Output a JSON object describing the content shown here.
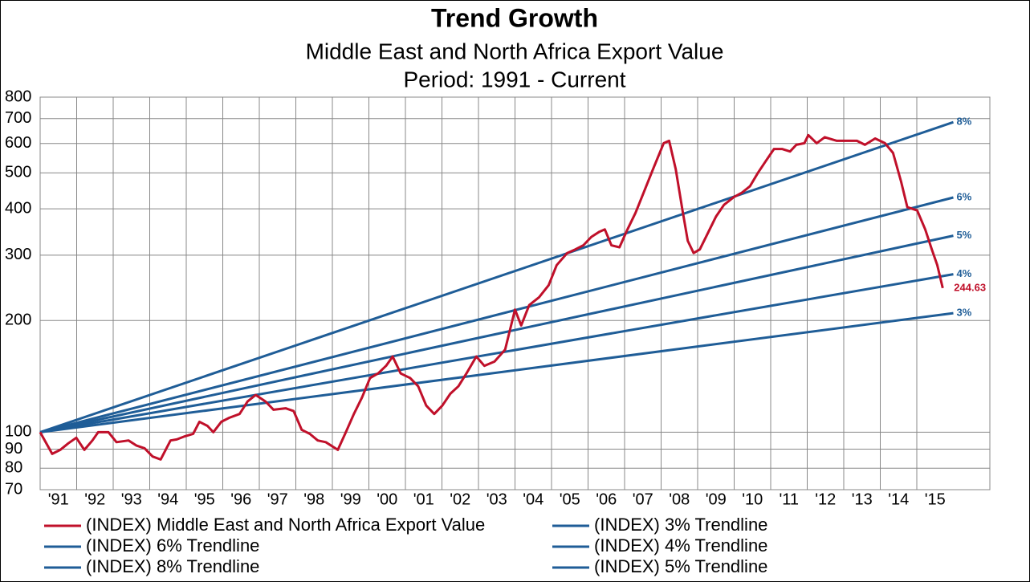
{
  "chart_data": {
    "type": "line",
    "title": "Trend Growth",
    "subtitle": [
      "Middle East and North Africa Export Value",
      "Period: 1991 - Current"
    ],
    "ylog": true,
    "grid": true,
    "xlim": [
      1991,
      2017
    ],
    "ylim": [
      70,
      800
    ],
    "yticks": [
      70,
      80,
      90,
      100,
      200,
      300,
      400,
      500,
      600,
      700,
      800
    ],
    "xticks": [
      {
        "value": 1991,
        "label": "'91"
      },
      {
        "value": 1992,
        "label": "'92"
      },
      {
        "value": 1993,
        "label": "'93"
      },
      {
        "value": 1994,
        "label": "'94"
      },
      {
        "value": 1995,
        "label": "'95"
      },
      {
        "value": 1996,
        "label": "'96"
      },
      {
        "value": 1997,
        "label": "'97"
      },
      {
        "value": 1998,
        "label": "'98"
      },
      {
        "value": 1999,
        "label": "'99"
      },
      {
        "value": 2000,
        "label": "'00"
      },
      {
        "value": 2001,
        "label": "'01"
      },
      {
        "value": 2002,
        "label": "'02"
      },
      {
        "value": 2003,
        "label": "'03"
      },
      {
        "value": 2004,
        "label": "'04"
      },
      {
        "value": 2005,
        "label": "'05"
      },
      {
        "value": 2006,
        "label": "'06"
      },
      {
        "value": 2007,
        "label": "'07"
      },
      {
        "value": 2008,
        "label": "'08"
      },
      {
        "value": 2009,
        "label": "'09"
      },
      {
        "value": 2010,
        "label": "'10"
      },
      {
        "value": 2011,
        "label": "'11"
      },
      {
        "value": 2012,
        "label": "'12"
      },
      {
        "value": 2013,
        "label": "'13"
      },
      {
        "value": 2014,
        "label": "'14"
      },
      {
        "value": 2015,
        "label": "'15"
      }
    ],
    "series": [
      {
        "name": "(INDEX) Middle East and North Africa Export Value",
        "color": "#c0102a",
        "end_label_is_value": true,
        "x": [
          1991.0,
          1991.33,
          1991.55,
          1991.77,
          1991.99,
          1992.21,
          1992.43,
          1992.59,
          1992.87,
          1993.09,
          1993.42,
          1993.64,
          1993.86,
          1994.08,
          1994.3,
          1994.57,
          1994.74,
          1994.96,
          1995.19,
          1995.36,
          1995.58,
          1995.74,
          1995.96,
          1996.18,
          1996.46,
          1996.68,
          1996.9,
          1997.17,
          1997.39,
          1997.72,
          1997.94,
          1998.16,
          1998.38,
          1998.6,
          1998.82,
          1999.15,
          1999.37,
          1999.59,
          1999.81,
          2000.03,
          2000.25,
          2000.47,
          2000.65,
          2000.87,
          2001.13,
          2001.35,
          2001.57,
          2001.79,
          2002.01,
          2002.23,
          2002.45,
          2002.67,
          2002.94,
          2003.16,
          2003.44,
          2003.73,
          2004.0,
          2004.17,
          2004.39,
          2004.66,
          2004.92,
          2005.14,
          2005.43,
          2005.65,
          2005.87,
          2006.09,
          2006.31,
          2006.46,
          2006.64,
          2006.86,
          2007.08,
          2007.3,
          2007.52,
          2007.78,
          2008.07,
          2008.22,
          2008.4,
          2008.58,
          2008.73,
          2008.89,
          2009.06,
          2009.28,
          2009.5,
          2009.72,
          2009.99,
          2010.21,
          2010.43,
          2010.65,
          2010.87,
          2011.09,
          2011.31,
          2011.53,
          2011.7,
          2011.92,
          2012.03,
          2012.26,
          2012.48,
          2012.81,
          2013.14,
          2013.36,
          2013.58,
          2013.86,
          2014.13,
          2014.35,
          2014.57,
          2014.74,
          2015.01,
          2015.23,
          2015.41,
          2015.56,
          2015.71
        ],
        "values": [
          100,
          87.4,
          89.6,
          93.3,
          96.6,
          89.6,
          95,
          100,
          100,
          94,
          95,
          92,
          90.5,
          86,
          84.4,
          95,
          95.6,
          97.5,
          99,
          106.7,
          104,
          100,
          106.7,
          109.4,
          112,
          121,
          126,
          121,
          115,
          116,
          114,
          101.5,
          99,
          95,
          94,
          89.6,
          100,
          112,
          124,
          140,
          144,
          151,
          160,
          144,
          140,
          133,
          118,
          112,
          118,
          127,
          133,
          144,
          160,
          151,
          155,
          167,
          214,
          194,
          220,
          231,
          249,
          282,
          304,
          311,
          319,
          336,
          347,
          352,
          319,
          315,
          352,
          390,
          442,
          512,
          601,
          610,
          512,
          399,
          328,
          304,
          311,
          344,
          381,
          410,
          430,
          442,
          460,
          500,
          539,
          580,
          580,
          571,
          595,
          601,
          632,
          601,
          624,
          610,
          610,
          610,
          595,
          619,
          601,
          566,
          474,
          404,
          396,
          352,
          311,
          282,
          244.63
        ]
      },
      {
        "name": "(INDEX) 3% Trendline",
        "color": "#1f5d97",
        "end_label": "3%",
        "x": [
          1991,
          2016
        ],
        "values": [
          100,
          209.4
        ]
      },
      {
        "name": "(INDEX) 6% Trendline",
        "color": "#1f5d97",
        "end_label": "6%",
        "x": [
          1991,
          2016
        ],
        "values": [
          100,
          429.2
        ]
      },
      {
        "name": "(INDEX) 4% Trendline",
        "color": "#1f5d97",
        "end_label": "4%",
        "x": [
          1991,
          2016
        ],
        "values": [
          100,
          266.6
        ]
      },
      {
        "name": "(INDEX) 8% Trendline",
        "color": "#1f5d97",
        "end_label": "8%",
        "x": [
          1991,
          2016
        ],
        "values": [
          100,
          684.8
        ]
      },
      {
        "name": "(INDEX) 5% Trendline",
        "color": "#1f5d97",
        "end_label": "5%",
        "x": [
          1991,
          2016
        ],
        "values": [
          100,
          338.6
        ]
      }
    ]
  }
}
